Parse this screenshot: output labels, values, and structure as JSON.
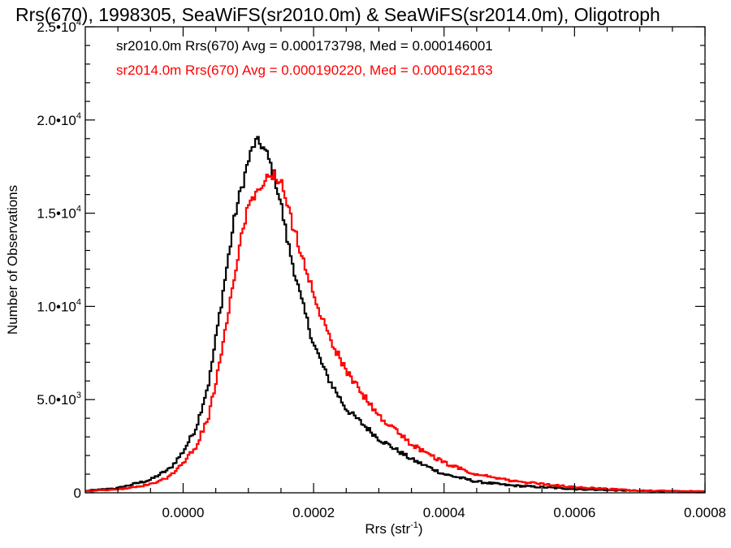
{
  "chart_data": {
    "type": "line",
    "title": "Rrs(670), 1998305, SeaWiFS(sr2010.0m) & SeaWiFS(sr2014.0m), Oligotroph",
    "xlabel": {
      "main": "Rrs (str",
      "sup": "-1",
      "end": ")"
    },
    "ylabel": "Number of Observations",
    "xlim": [
      -0.00015,
      0.0008
    ],
    "ylim": [
      0,
      25000
    ],
    "x_ticks": [
      {
        "value": 0.0,
        "label": "0.0000"
      },
      {
        "value": 0.0002,
        "label": "0.0002"
      },
      {
        "value": 0.0004,
        "label": "0.0004"
      },
      {
        "value": 0.0006,
        "label": "0.0006"
      },
      {
        "value": 0.0008,
        "label": "0.0008"
      }
    ],
    "y_ticks": [
      {
        "value": 0,
        "label": "0",
        "exp": ""
      },
      {
        "value": 5000,
        "label": "5.0•10",
        "exp": "3"
      },
      {
        "value": 10000,
        "label": "1.0•10",
        "exp": "4"
      },
      {
        "value": 15000,
        "label": "1.5•10",
        "exp": "4"
      },
      {
        "value": 20000,
        "label": "2.0•10",
        "exp": "4"
      },
      {
        "value": 25000,
        "label": "2.5•10",
        "exp": "4"
      }
    ],
    "annotations": [
      "sr2010.0m Rrs(670) Avg = 0.000173798, Med = 0.000146001",
      "sr2014.0m Rrs(670) Avg = 0.000190220, Med = 0.000162163"
    ],
    "series": [
      {
        "color": "#000000",
        "x": [
          -0.00015,
          -0.0001,
          -5e-05,
          -2e-05,
          0.0,
          2e-05,
          4e-05,
          6e-05,
          8e-05,
          0.0001,
          0.00011,
          0.00012,
          0.00013,
          0.00014,
          0.00015,
          0.00016,
          0.00018,
          0.0002,
          0.00022,
          0.00025,
          0.0003,
          0.00035,
          0.0004,
          0.00045,
          0.0005,
          0.0006,
          0.0007,
          0.0008
        ],
        "values": [
          100,
          250,
          700,
          1300,
          2200,
          3500,
          6000,
          10500,
          15000,
          17800,
          18800,
          18700,
          18000,
          17000,
          15500,
          13500,
          10500,
          8000,
          6300,
          4500,
          2900,
          1800,
          1000,
          600,
          400,
          200,
          100,
          60
        ]
      },
      {
        "color": "#ff0000",
        "x": [
          -0.00015,
          -0.0001,
          -5e-05,
          -2e-05,
          0.0,
          2e-05,
          4e-05,
          6e-05,
          8e-05,
          0.0001,
          0.00012,
          0.00013,
          0.00014,
          0.00015,
          0.00016,
          0.00018,
          0.0002,
          0.00022,
          0.00025,
          0.0003,
          0.00035,
          0.0004,
          0.00045,
          0.0005,
          0.0006,
          0.0007,
          0.0008
        ],
        "values": [
          80,
          180,
          450,
          900,
          1600,
          2500,
          4200,
          7600,
          12000,
          15500,
          16500,
          16900,
          17000,
          16600,
          15300,
          13000,
          10700,
          8700,
          6500,
          4100,
          2600,
          1600,
          1000,
          650,
          300,
          120,
          70
        ]
      }
    ]
  }
}
